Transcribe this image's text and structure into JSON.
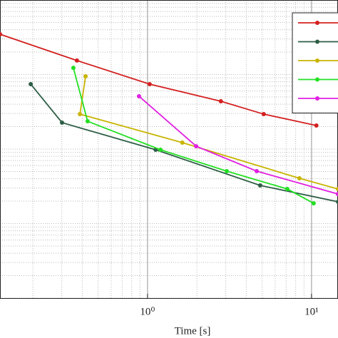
{
  "chart_data": {
    "type": "line",
    "x_label": "Time [s]",
    "log_x": true,
    "log_y": true,
    "grid": true,
    "legend": "upper right",
    "xlim": [
      0.126,
      14.5
    ],
    "ylim": [
      0.0001,
      1
    ],
    "xticks": [
      {
        "value": 1,
        "label": "10⁰"
      },
      {
        "value": 10,
        "label": "10¹"
      }
    ],
    "series": [
      {
        "color": "#d42020",
        "x": [
          0.126,
          0.371,
          1.03,
          2.8,
          5.11,
          10.7
        ],
        "values": [
          0.347,
          0.154,
          0.0743,
          0.0438,
          0.0294,
          0.0207
        ]
      },
      {
        "color": "#2e5e46",
        "x": [
          0.194,
          0.301,
          1.12,
          4.86,
          14.5
        ],
        "values": [
          0.0743,
          0.0226,
          0.00978,
          0.00325,
          0.00196
        ]
      },
      {
        "color": "#c8b400",
        "x": [
          0.419,
          0.387,
          1.63,
          8.43,
          14.5
        ],
        "values": [
          0.0946,
          0.0294,
          0.0122,
          0.00405,
          0.00291
        ]
      },
      {
        "color": "#22e022",
        "x": [
          0.353,
          0.431,
          1.2,
          3.04,
          7.11,
          10.3
        ],
        "values": [
          0.123,
          0.0236,
          0.00978,
          0.00505,
          0.00291,
          0.00187
        ]
      },
      {
        "color": "#e020e0",
        "x": [
          0.887,
          1.98,
          4.63,
          14.5
        ],
        "values": [
          0.0511,
          0.0109,
          0.00505,
          0.00249
        ]
      }
    ]
  }
}
